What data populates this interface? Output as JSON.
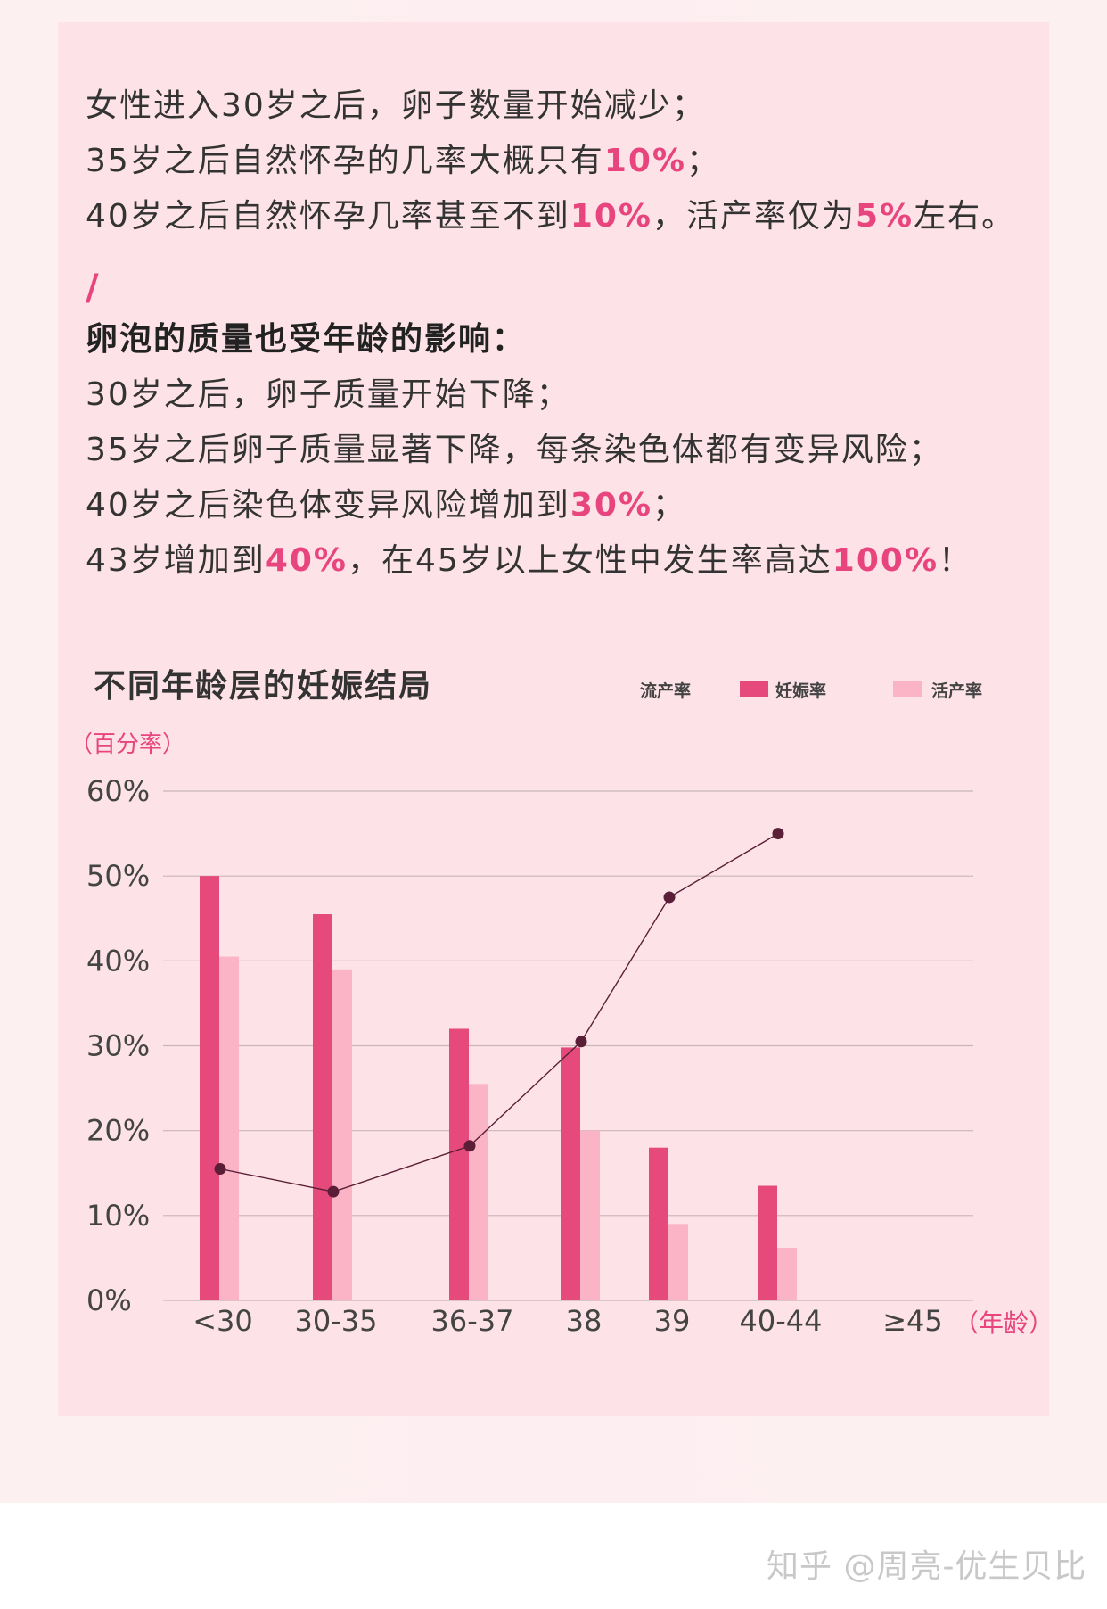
{
  "intro": {
    "line1": "女性进入30岁之后，卵子数量开始减少；",
    "line2": {
      "before": "35岁之后自然怀孕的几率大概只有",
      "hl1": "10%",
      "after": "；"
    },
    "line3": {
      "before": "40岁之后自然怀孕几率甚至不到",
      "hl1": "10%",
      "mid": "，活产率仅为",
      "hl2": "5%",
      "after": "左右。"
    }
  },
  "quality": {
    "slash": "/",
    "heading": "卵泡的质量也受年龄的影响：",
    "line1": "30岁之后，卵子质量开始下降；",
    "line2": "35岁之后卵子质量显著下降，每条染色体都有变异风险；",
    "line3": {
      "before": "40岁之后染色体变异风险增加到",
      "hl1": "30%",
      "after": "；"
    },
    "line4": {
      "before": "43岁增加到",
      "hl1": "40%",
      "mid": "，在45岁以上女性中发生率高达",
      "hl2": "100%",
      "after": "！"
    }
  },
  "colors": {
    "accent": "#e8457e",
    "pregnancy_bar": "#e64a7d",
    "live_birth_bar": "#fbb4c6",
    "miscarriage_line": "#5a1f36"
  },
  "chart_data": {
    "type": "bar",
    "title": "不同年龄层的妊娠结局",
    "ylabel": "（百分率）",
    "xlabel": "（年龄）",
    "categories": [
      "<30",
      "30-35",
      "36-37",
      "38",
      "39",
      "40-44",
      "≥45"
    ],
    "ylim": [
      0,
      60
    ],
    "yticks": [
      "0%",
      "10%",
      "20%",
      "30%",
      "40%",
      "50%",
      "60%"
    ],
    "grid": true,
    "legend_position": "top-right",
    "series": [
      {
        "name": "流产率",
        "kind": "line",
        "values": [
          15.5,
          12.8,
          18.2,
          30.5,
          47.5,
          55.0,
          null
        ]
      },
      {
        "name": "妊娠率",
        "kind": "bar",
        "values": [
          50.0,
          45.5,
          32.0,
          29.8,
          18.0,
          13.5,
          null
        ]
      },
      {
        "name": "活产率",
        "kind": "bar",
        "values": [
          40.5,
          39.0,
          25.5,
          20.0,
          9.0,
          6.2,
          null
        ]
      }
    ]
  },
  "watermark": "知乎 @周亮-优生贝比"
}
